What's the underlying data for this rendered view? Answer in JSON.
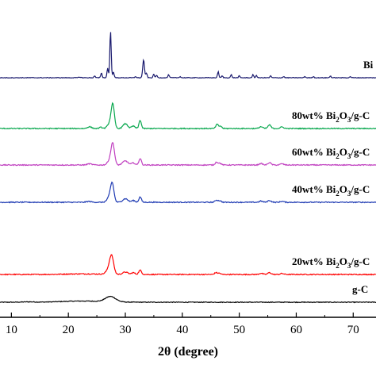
{
  "chart_data": {
    "type": "line",
    "xlabel": "2θ (degree)",
    "ylabel": "",
    "xlim": [
      8,
      74
    ],
    "xticks": [
      10,
      20,
      30,
      40,
      50,
      60,
      70
    ],
    "grid": false,
    "legend": "none",
    "series": [
      {
        "label_parts": [
          "g-C"
        ],
        "color": "#000000",
        "offset": 0,
        "baseline": 0.0,
        "noise": 0.6,
        "peaks": [
          [
            27.4,
            9,
            0.9
          ],
          [
            22.5,
            2,
            3.5
          ],
          [
            13.0,
            0.6,
            1.0
          ]
        ]
      },
      {
        "label_parts": [
          "20wt% Bi",
          "2",
          "O",
          "3",
          "/g-C"
        ],
        "color": "#ff0000",
        "offset": 1,
        "baseline": 0.0,
        "noise": 0.8,
        "peaks": [
          [
            27.6,
            26,
            0.35
          ],
          [
            27.2,
            9,
            0.5
          ],
          [
            30.0,
            4,
            0.45
          ],
          [
            31.4,
            3,
            0.3
          ],
          [
            32.6,
            7,
            0.25
          ],
          [
            45.9,
            3,
            0.25
          ],
          [
            46.5,
            2,
            0.25
          ],
          [
            53.8,
            2,
            0.3
          ],
          [
            55.3,
            3,
            0.3
          ],
          [
            57.5,
            1.6,
            0.3
          ],
          [
            22.5,
            1,
            3.0
          ]
        ]
      },
      {
        "label_parts": [
          "40wt% Bi",
          "2",
          "O",
          "3",
          "/g-C"
        ],
        "color": "#1f3bb3",
        "offset": 2,
        "baseline": 0.0,
        "noise": 0.8,
        "peaks": [
          [
            27.7,
            30,
            0.3
          ],
          [
            27.2,
            8,
            0.4
          ],
          [
            30.0,
            6,
            0.45
          ],
          [
            31.4,
            3,
            0.3
          ],
          [
            32.6,
            9,
            0.22
          ],
          [
            46.0,
            3.5,
            0.25
          ],
          [
            46.6,
            2.5,
            0.25
          ],
          [
            53.8,
            2,
            0.3
          ],
          [
            55.3,
            3,
            0.3
          ],
          [
            57.5,
            1.6,
            0.3
          ],
          [
            23.6,
            1.5,
            0.4
          ]
        ]
      },
      {
        "label_parts": [
          "60wt% Bi",
          "2",
          "O",
          "3",
          "/g-C"
        ],
        "color": "#c040c0",
        "offset": 3,
        "baseline": 0.0,
        "noise": 0.8,
        "peaks": [
          [
            27.8,
            34,
            0.3
          ],
          [
            27.3,
            8,
            0.4
          ],
          [
            30.0,
            7,
            0.45
          ],
          [
            31.4,
            3.5,
            0.3
          ],
          [
            32.6,
            11,
            0.22
          ],
          [
            46.0,
            5,
            0.22
          ],
          [
            46.6,
            3,
            0.25
          ],
          [
            53.8,
            2.5,
            0.3
          ],
          [
            55.3,
            4,
            0.28
          ],
          [
            57.5,
            2,
            0.3
          ],
          [
            23.7,
            2,
            0.4
          ]
        ]
      },
      {
        "label_parts": [
          "80wt% Bi",
          "2",
          "O",
          "3",
          "/g-C"
        ],
        "color": "#0aa84f",
        "offset": 4,
        "baseline": 0.0,
        "noise": 0.8,
        "peaks": [
          [
            27.8,
            38,
            0.28
          ],
          [
            27.3,
            9,
            0.4
          ],
          [
            30.0,
            8,
            0.4
          ],
          [
            31.4,
            4,
            0.3
          ],
          [
            32.6,
            14,
            0.2
          ],
          [
            46.1,
            7,
            0.22
          ],
          [
            46.7,
            4,
            0.22
          ],
          [
            53.8,
            3,
            0.3
          ],
          [
            55.3,
            6,
            0.26
          ],
          [
            57.5,
            2.5,
            0.3
          ],
          [
            23.7,
            3,
            0.35
          ],
          [
            25.7,
            2,
            0.25
          ]
        ]
      },
      {
        "label_parts": [
          "Bi"
        ],
        "color": "#1a1a6e",
        "offset": 5,
        "baseline": 0.0,
        "noise": 0.5,
        "peaks": [
          [
            27.4,
            78,
            0.12
          ],
          [
            26.9,
            16,
            0.12
          ],
          [
            27.9,
            10,
            0.12
          ],
          [
            25.8,
            8,
            0.12
          ],
          [
            24.6,
            3,
            0.12
          ],
          [
            33.2,
            30,
            0.15
          ],
          [
            33.7,
            8,
            0.12
          ],
          [
            35.0,
            6,
            0.12
          ],
          [
            35.5,
            4,
            0.12
          ],
          [
            37.6,
            5,
            0.12
          ],
          [
            39.6,
            2,
            0.12
          ],
          [
            46.3,
            10,
            0.12
          ],
          [
            47.0,
            3,
            0.12
          ],
          [
            48.6,
            5,
            0.12
          ],
          [
            50.0,
            3,
            0.12
          ],
          [
            52.4,
            5,
            0.12
          ],
          [
            53.0,
            4,
            0.12
          ],
          [
            55.5,
            3,
            0.12
          ],
          [
            57.8,
            2,
            0.12
          ],
          [
            61.5,
            2,
            0.12
          ],
          [
            63.0,
            2,
            0.12
          ],
          [
            66.0,
            3,
            0.12
          ],
          [
            69.5,
            2,
            0.12
          ],
          [
            22.0,
            1,
            0.2
          ],
          [
            31.8,
            2,
            0.12
          ]
        ]
      }
    ]
  }
}
